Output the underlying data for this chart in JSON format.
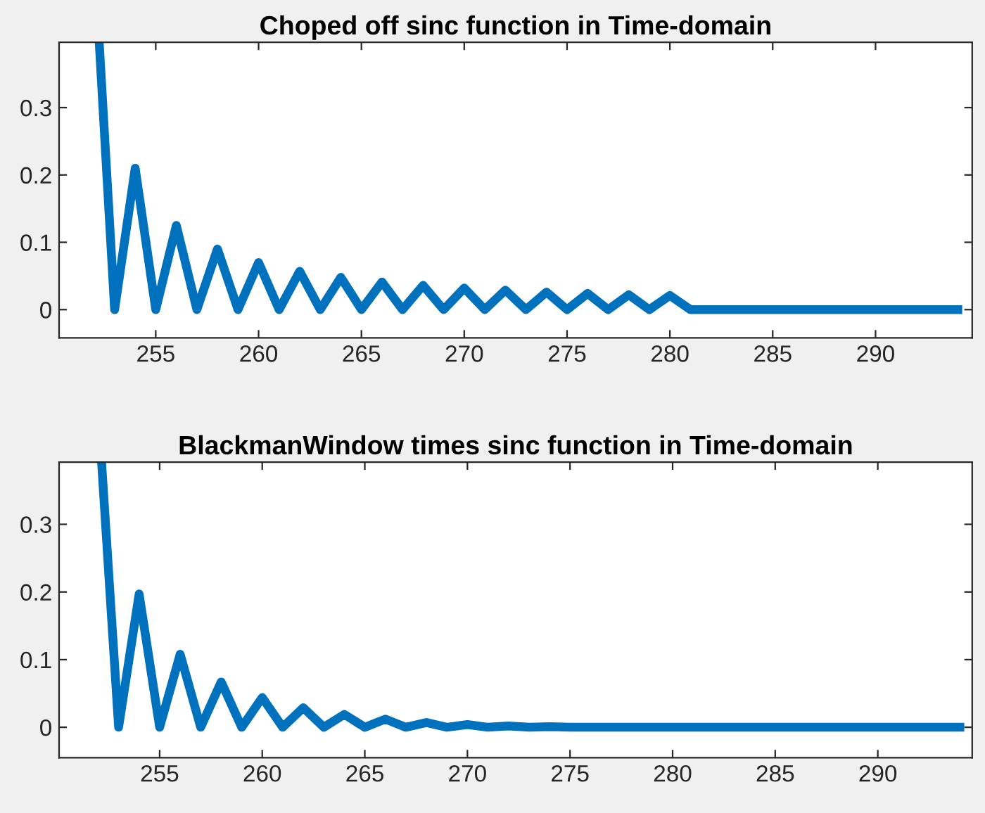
{
  "chart_data": [
    {
      "type": "line",
      "title": "Choped off sinc function in Time-domain",
      "xlim": [
        250.3,
        294.7
      ],
      "ylim": [
        -0.042,
        0.397
      ],
      "xticks": [
        255,
        260,
        265,
        270,
        275,
        280,
        285,
        290
      ],
      "yticks": [
        0,
        0.1,
        0.2,
        0.3
      ],
      "grid": false,
      "marker": "none",
      "line_style": "solid",
      "x": [
        252.25,
        253,
        254,
        255,
        256,
        257,
        258,
        259,
        260,
        261,
        262,
        263,
        264,
        265,
        266,
        267,
        268,
        269,
        270,
        271,
        272,
        273,
        274,
        275,
        276,
        277,
        278,
        279,
        280,
        281,
        282,
        283,
        284,
        285,
        286,
        287,
        288,
        289,
        290,
        291,
        292,
        293,
        294
      ],
      "series": [
        {
          "color": "#0072bd",
          "values": [
            0.397,
            0,
            0.21,
            0,
            0.125,
            0,
            0.09,
            0,
            0.07,
            0,
            0.057,
            0,
            0.048,
            0,
            0.041,
            0,
            0.036,
            0,
            0.032,
            0,
            0.029,
            0,
            0.026,
            0,
            0.024,
            0,
            0.022,
            0,
            0.021,
            0,
            0,
            0,
            0,
            0,
            0,
            0,
            0,
            0,
            0,
            0,
            0,
            0,
            0
          ]
        }
      ]
    },
    {
      "type": "line",
      "title": "BlackmanWindow times sinc function in Time-domain",
      "xlim": [
        250.1,
        294.6
      ],
      "ylim": [
        -0.045,
        0.392
      ],
      "xticks": [
        255,
        260,
        265,
        270,
        275,
        280,
        285,
        290
      ],
      "yticks": [
        0,
        0.1,
        0.2,
        0.3
      ],
      "grid": false,
      "marker": "none",
      "line_style": "solid",
      "x": [
        252.17,
        253,
        254,
        255,
        256,
        257,
        258,
        259,
        260,
        261,
        262,
        263,
        264,
        265,
        266,
        267,
        268,
        269,
        270,
        271,
        272,
        273,
        274,
        275,
        276,
        277,
        278,
        279,
        280,
        281,
        282,
        283,
        284,
        285,
        286,
        287,
        288,
        289,
        290,
        291,
        292,
        293,
        294
      ],
      "series": [
        {
          "color": "#0072bd",
          "values": [
            0.392,
            0,
            0.197,
            0,
            0.108,
            0,
            0.067,
            0,
            0.044,
            0,
            0.029,
            0,
            0.019,
            0,
            0.012,
            0,
            0.007,
            0,
            0.004,
            0,
            0.002,
            0,
            0.001,
            0,
            0,
            0,
            0,
            0,
            0,
            0,
            0,
            0,
            0,
            0,
            0,
            0,
            0,
            0,
            0,
            0,
            0,
            0,
            0
          ]
        }
      ]
    }
  ]
}
